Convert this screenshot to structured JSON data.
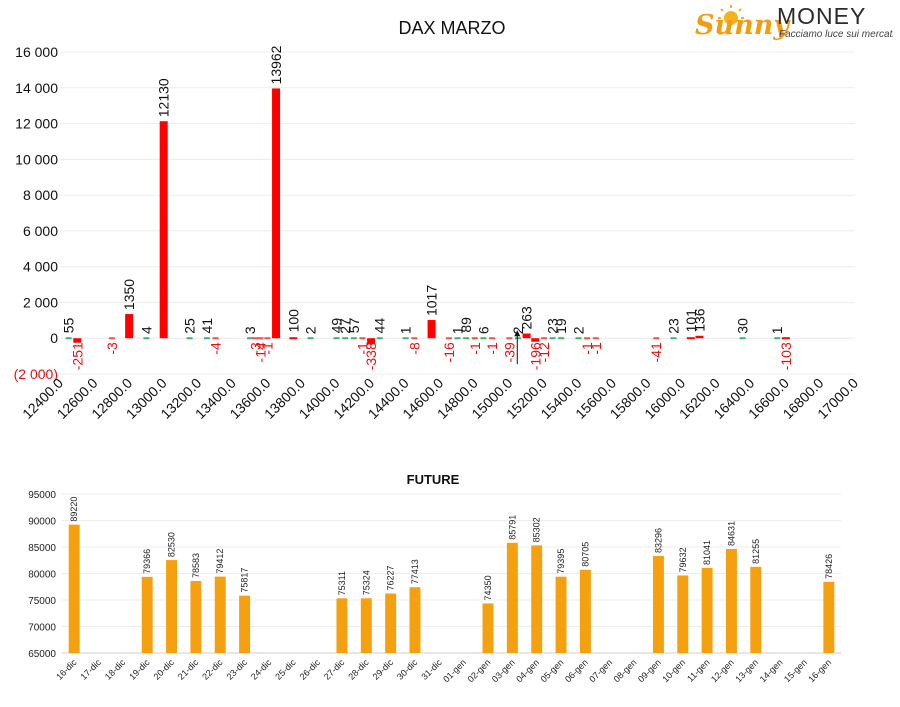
{
  "logo": {
    "brand_script": "Sunny",
    "brand_caps": "MONEY",
    "tagline": "Facciamo luce sui mercati"
  },
  "chart_data": [
    {
      "type": "bar",
      "title": "DAX MARZO",
      "ylim": [
        -2000,
        16000
      ],
      "yticks": [
        -2000,
        0,
        2000,
        4000,
        6000,
        8000,
        10000,
        12000,
        14000,
        16000
      ],
      "ytick_labels": [
        "(2 000)",
        "0",
        "2 000",
        "4 000",
        "6 000",
        "8 000",
        "10 000",
        "12 000",
        "14 000",
        "16 000"
      ],
      "xlim": [
        12400,
        17000
      ],
      "xtick_labels": [
        "12400.0",
        "12600.0",
        "12800.0",
        "13000.0",
        "13200.0",
        "13400.0",
        "13600.0",
        "13800.0",
        "14000.0",
        "14200.0",
        "14400.0",
        "14600.0",
        "14800.0",
        "15000.0",
        "15200.0",
        "15400.0",
        "15600.0",
        "15800.0",
        "16000.0",
        "16200.0",
        "16400.0",
        "16600.0",
        "16800.0",
        "17000.0"
      ],
      "grid": true,
      "colors": {
        "main": "#ff0000",
        "positive_small": "#3cb371",
        "negative_small": "#ff4d4d",
        "positive_label": "#111111",
        "negative_label": "#e81010",
        "marker": "#111111"
      },
      "current_price_marker": {
        "x": 15150
      },
      "bars": [
        {
          "x": 12450,
          "value": 55,
          "series": "pos"
        },
        {
          "x": 12500,
          "value": -251,
          "series": "neg"
        },
        {
          "x": 12700,
          "value": -3,
          "series": "neg"
        },
        {
          "x": 12800,
          "value": 1350,
          "series": "pos"
        },
        {
          "x": 12900,
          "value": 4,
          "series": "pos"
        },
        {
          "x": 13000,
          "value": 12130,
          "series": "pos"
        },
        {
          "x": 13150,
          "value": 25,
          "series": "pos"
        },
        {
          "x": 13250,
          "value": 41,
          "series": "pos"
        },
        {
          "x": 13300,
          "value": -4,
          "series": "neg"
        },
        {
          "x": 13500,
          "value": 3,
          "series": "pos"
        },
        {
          "x": 13530,
          "value": -3,
          "series": "neg"
        },
        {
          "x": 13560,
          "value": -14,
          "series": "neg"
        },
        {
          "x": 13600,
          "value": -1,
          "series": "neg"
        },
        {
          "x": 13650,
          "value": 13962,
          "series": "pos"
        },
        {
          "x": 13750,
          "value": 100,
          "series": "pos"
        },
        {
          "x": 13850,
          "value": 2,
          "series": "pos"
        },
        {
          "x": 14000,
          "value": 49,
          "series": "pos"
        },
        {
          "x": 14050,
          "value": 27,
          "series": "pos"
        },
        {
          "x": 14100,
          "value": 57,
          "series": "pos"
        },
        {
          "x": 14150,
          "value": -1,
          "series": "neg"
        },
        {
          "x": 14200,
          "value": -338,
          "series": "neg"
        },
        {
          "x": 14250,
          "value": 44,
          "series": "pos"
        },
        {
          "x": 14400,
          "value": 1,
          "series": "pos"
        },
        {
          "x": 14450,
          "value": -8,
          "series": "neg"
        },
        {
          "x": 14550,
          "value": 1017,
          "series": "pos"
        },
        {
          "x": 14650,
          "value": -16,
          "series": "neg"
        },
        {
          "x": 14700,
          "value": 1,
          "series": "pos"
        },
        {
          "x": 14750,
          "value": 89,
          "series": "pos"
        },
        {
          "x": 14800,
          "value": -1,
          "series": "neg"
        },
        {
          "x": 14850,
          "value": 6,
          "series": "pos"
        },
        {
          "x": 14900,
          "value": -1,
          "series": "neg"
        },
        {
          "x": 15000,
          "value": -39,
          "series": "neg"
        },
        {
          "x": 15050,
          "value": 2,
          "series": "pos"
        },
        {
          "x": 15100,
          "value": 263,
          "series": "pos"
        },
        {
          "x": 15150,
          "value": -196,
          "series": "neg"
        },
        {
          "x": 15200,
          "value": -12,
          "series": "neg"
        },
        {
          "x": 15250,
          "value": 23,
          "series": "pos"
        },
        {
          "x": 15300,
          "value": 19,
          "series": "pos"
        },
        {
          "x": 15400,
          "value": 2,
          "series": "pos"
        },
        {
          "x": 15450,
          "value": -1,
          "series": "neg"
        },
        {
          "x": 15500,
          "value": -1,
          "series": "neg"
        },
        {
          "x": 15850,
          "value": -41,
          "series": "neg"
        },
        {
          "x": 15950,
          "value": 23,
          "series": "pos"
        },
        {
          "x": 16050,
          "value": 101,
          "series": "pos"
        },
        {
          "x": 16100,
          "value": 136,
          "series": "pos"
        },
        {
          "x": 16350,
          "value": 30,
          "series": "pos"
        },
        {
          "x": 16550,
          "value": 1,
          "series": "pos"
        },
        {
          "x": 16600,
          "value": -103,
          "series": "neg"
        }
      ]
    },
    {
      "type": "bar",
      "title": "FUTURE",
      "ylim": [
        65000,
        95000
      ],
      "yticks": [
        65000,
        70000,
        75000,
        80000,
        85000,
        90000,
        95000
      ],
      "categories": [
        "16-dic",
        "17-dic",
        "18-dic",
        "19-dic",
        "20-dic",
        "21-dic",
        "22-dic",
        "23-dic",
        "24-dic",
        "25-dic",
        "26-dic",
        "27-dic",
        "28-dic",
        "29-dic",
        "30-dic",
        "31-dic",
        "01-gen",
        "02-gen",
        "03-gen",
        "04-gen",
        "05-gen",
        "06-gen",
        "07-gen",
        "08-gen",
        "09-gen",
        "10-gen",
        "11-gen",
        "12-gen",
        "13-gen",
        "14-gen",
        "15-gen",
        "16-gen"
      ],
      "values": [
        89220,
        null,
        null,
        79366,
        82530,
        78583,
        79412,
        75817,
        null,
        null,
        null,
        75311,
        75324,
        76227,
        77413,
        null,
        null,
        74350,
        85791,
        85302,
        79395,
        80705,
        null,
        null,
        83296,
        79632,
        81041,
        84631,
        81255,
        null,
        null,
        78426
      ],
      "color": "#f5a00f",
      "grid": true
    }
  ]
}
